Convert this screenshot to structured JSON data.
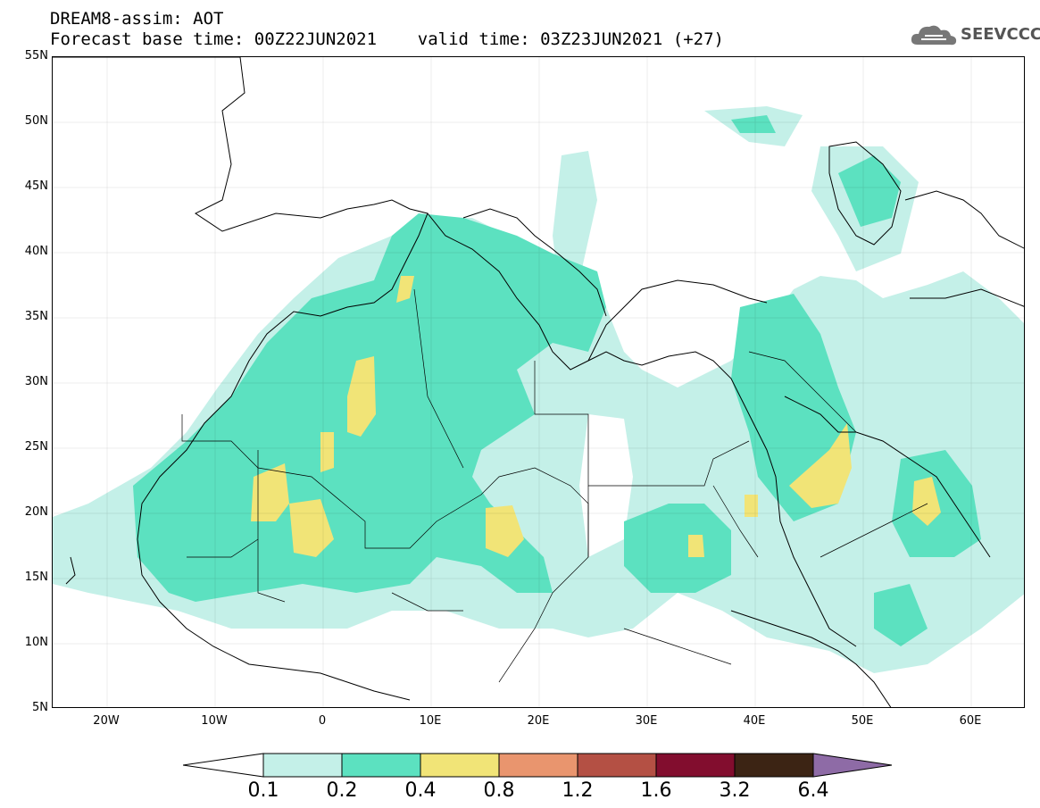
{
  "header": {
    "title_line1": "DREAM8-assim: AOT",
    "title_line2": "Forecast base time: 00Z22JUN2021    valid time: 03Z23JUN2021 (+27)",
    "logo_text": "SEEVCCC"
  },
  "map": {
    "lat_labels": [
      "55N",
      "50N",
      "45N",
      "40N",
      "35N",
      "30N",
      "25N",
      "20N",
      "15N",
      "10N",
      "5N"
    ],
    "lon_labels": [
      "20W",
      "10W",
      "0",
      "10E",
      "20E",
      "30E",
      "40E",
      "50E",
      "60E"
    ],
    "lat_range": [
      5,
      55
    ],
    "lon_range": [
      -25,
      65
    ]
  },
  "colorbar": {
    "labels": [
      "0.1",
      "0.2",
      "0.4",
      "0.8",
      "1.2",
      "1.6",
      "3.2",
      "6.4"
    ],
    "colors": [
      "#ffffff",
      "#c4f0e8",
      "#5ce1c0",
      "#f1e477",
      "#e9956e",
      "#b45044",
      "#820d2e",
      "#3c2414",
      "#8e6ba6"
    ]
  }
}
